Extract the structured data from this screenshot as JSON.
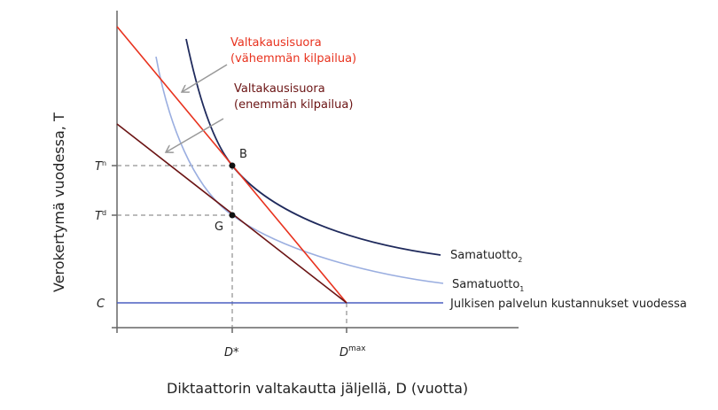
{
  "diagram": {
    "y_axis_label": "Verokertymä vuodessa, T",
    "x_axis_label": "Diktaattorin valtakautta jäljellä, D (vuotta)",
    "y_ticks": {
      "tn_base": "T",
      "tn_sup": "n",
      "td_base": "T",
      "td_sup": "d",
      "c": "C"
    },
    "x_ticks": {
      "dstar": "D*",
      "dmax_base": "D",
      "dmax_sup": "max"
    },
    "points": {
      "b": "B",
      "g": "G"
    },
    "annotations": {
      "red_line_1": "Valtakausisuora",
      "red_line_2": "(vähemmän kilpailua)",
      "darkred_line_1": "Valtakausisuora",
      "darkred_line_2": "(enemmän kilpailua)"
    },
    "curves": {
      "samatuotto2_base": "Samatuotto",
      "samatuotto2_sub": "2",
      "samatuotto1_base": "Samatuotto",
      "samatuotto1_sub": "1",
      "cost_line": "Julkisen palvelun kustannukset vuodessa"
    },
    "colors": {
      "red": "#e8321e",
      "darkred": "#6b1414",
      "navy": "#1f2a5c",
      "lightblue": "#9aaee0",
      "costblue": "#4a5fc1",
      "axis": "#555555"
    }
  }
}
